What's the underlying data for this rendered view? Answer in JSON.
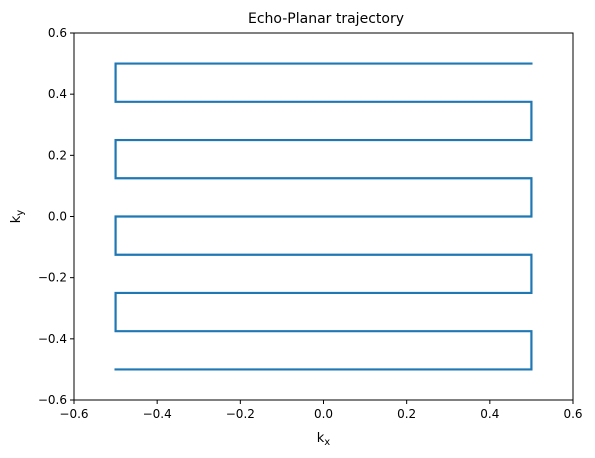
{
  "chart_data": {
    "type": "line",
    "title": "Echo-Planar trajectory",
    "xlabel": {
      "base": "k",
      "sub": "x"
    },
    "ylabel": {
      "base": "k",
      "sub": "y"
    },
    "xlim": [
      -0.6,
      0.6
    ],
    "ylim": [
      -0.6,
      0.6
    ],
    "xticks": [
      -0.6,
      -0.4,
      -0.2,
      0.0,
      0.2,
      0.4,
      0.6
    ],
    "yticks": [
      -0.6,
      -0.4,
      -0.2,
      0.0,
      0.2,
      0.4,
      0.6
    ],
    "xtick_labels": [
      "−0.6",
      "−0.4",
      "−0.2",
      "0.0",
      "0.2",
      "0.4",
      "0.6"
    ],
    "ytick_labels": [
      "−0.6",
      "−0.4",
      "−0.2",
      "0.0",
      "0.2",
      "0.4",
      "0.6"
    ],
    "grid": false,
    "legend": false,
    "series": [
      {
        "color": "#1f77b4",
        "x": [
          -0.5,
          0.5,
          0.5,
          -0.5,
          -0.5,
          0.5,
          0.5,
          -0.5,
          -0.5,
          0.5,
          0.5,
          -0.5,
          -0.5,
          0.5,
          0.5,
          -0.5,
          -0.5,
          0.5
        ],
        "y": [
          -0.5,
          -0.5,
          -0.375,
          -0.375,
          -0.25,
          -0.25,
          -0.125,
          -0.125,
          0.0,
          0.0,
          0.125,
          0.125,
          0.25,
          0.25,
          0.375,
          0.375,
          0.5,
          0.5
        ]
      }
    ]
  }
}
